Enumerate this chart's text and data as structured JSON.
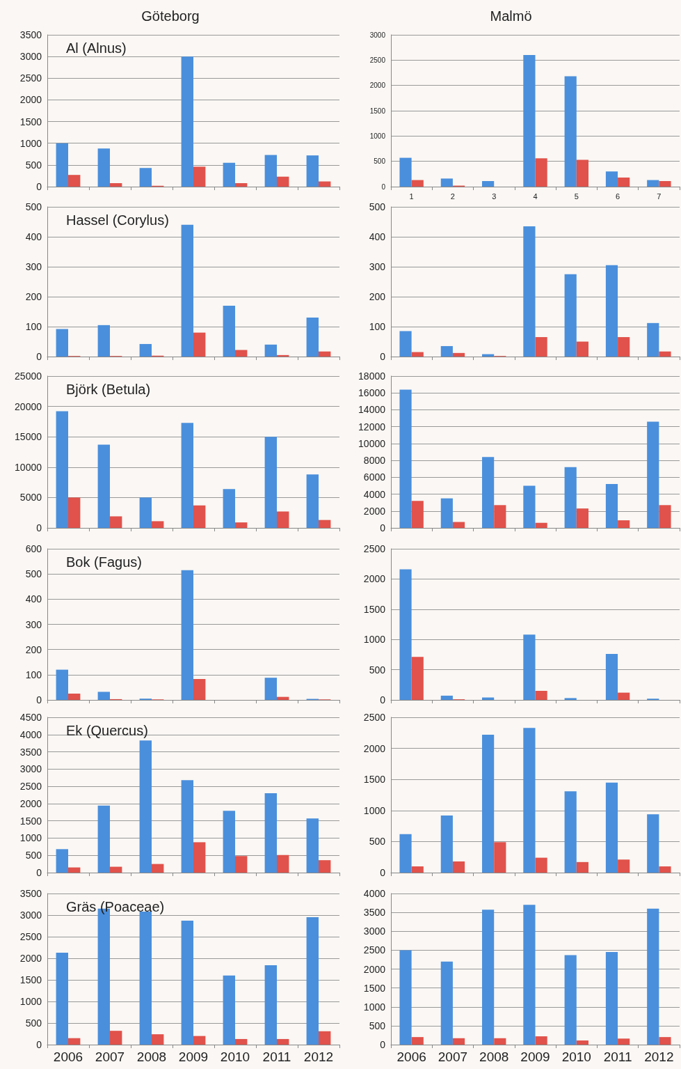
{
  "chart_data": [
    {
      "type": "bar",
      "title": "Göteborg",
      "subtitle": "Al (Alnus)",
      "categories": [
        null,
        null,
        null,
        null,
        null,
        null,
        null
      ],
      "tick_labels": "y",
      "grid": "y",
      "ylim": [
        0,
        3500
      ],
      "yticks": [
        0,
        500,
        1000,
        1500,
        2000,
        2500,
        3000,
        3500
      ],
      "series": [
        {
          "color": "#4a8fdc",
          "values": [
            1000,
            880,
            430,
            3000,
            550,
            730,
            720
          ]
        },
        {
          "color": "#e0524b",
          "values": [
            270,
            80,
            20,
            460,
            80,
            230,
            120
          ]
        }
      ]
    },
    {
      "type": "bar",
      "title": "Malmö",
      "categories": [
        "1",
        "2",
        "3",
        "4",
        "5",
        "6",
        "7"
      ],
      "grid": "y",
      "ylim": [
        0,
        3000
      ],
      "yticks": [
        0,
        500,
        1000,
        1500,
        2000,
        2500,
        3000
      ],
      "series": [
        {
          "color": "#4a8fdc",
          "values": [
            570,
            160,
            110,
            2600,
            2180,
            300,
            130
          ]
        },
        {
          "color": "#e0524b",
          "values": [
            130,
            20,
            null,
            560,
            530,
            180,
            110
          ]
        }
      ]
    },
    {
      "type": "bar",
      "subtitle": "Hassel (Corylus)",
      "categories": [
        null,
        null,
        null,
        null,
        null,
        null,
        null
      ],
      "tick_labels": "y",
      "grid": "y",
      "ylim": [
        0,
        500
      ],
      "yticks": [
        0,
        100,
        200,
        300,
        400,
        500
      ],
      "series": [
        {
          "color": "#4a8fdc",
          "values": [
            92,
            105,
            42,
            440,
            170,
            40,
            130
          ]
        },
        {
          "color": "#e0524b",
          "values": [
            2,
            2,
            3,
            80,
            22,
            5,
            17
          ]
        }
      ]
    },
    {
      "type": "bar",
      "categories": [
        null,
        null,
        null,
        null,
        null,
        null,
        null
      ],
      "tick_labels": "y",
      "grid": "y",
      "ylim": [
        0,
        500
      ],
      "yticks": [
        0,
        100,
        200,
        300,
        400,
        500
      ],
      "series": [
        {
          "color": "#4a8fdc",
          "values": [
            85,
            35,
            8,
            435,
            275,
            305,
            112
          ]
        },
        {
          "color": "#e0524b",
          "values": [
            15,
            12,
            2,
            65,
            50,
            65,
            17
          ]
        }
      ]
    },
    {
      "type": "bar",
      "subtitle": "Björk (Betula)",
      "categories": [
        null,
        null,
        null,
        null,
        null,
        null,
        null
      ],
      "tick_labels": "y",
      "grid": "y",
      "ylim": [
        0,
        25000
      ],
      "yticks": [
        0,
        5000,
        10000,
        15000,
        20000,
        25000
      ],
      "series": [
        {
          "color": "#4a8fdc",
          "values": [
            19200,
            13700,
            5000,
            17300,
            6400,
            15000,
            8800
          ]
        },
        {
          "color": "#e0524b",
          "values": [
            5000,
            1900,
            1100,
            3700,
            900,
            2700,
            1300
          ]
        }
      ]
    },
    {
      "type": "bar",
      "categories": [
        null,
        null,
        null,
        null,
        null,
        null,
        null
      ],
      "tick_labels": "y",
      "grid": "y",
      "ylim": [
        0,
        18000
      ],
      "yticks": [
        0,
        2000,
        4000,
        6000,
        8000,
        10000,
        12000,
        14000,
        16000,
        18000
      ],
      "series": [
        {
          "color": "#4a8fdc",
          "values": [
            16400,
            3500,
            8400,
            5000,
            7200,
            5200,
            12600
          ]
        },
        {
          "color": "#e0524b",
          "values": [
            3200,
            700,
            2700,
            600,
            2300,
            900,
            2700
          ]
        }
      ]
    },
    {
      "type": "bar",
      "subtitle": "Bok (Fagus)",
      "categories": [
        null,
        null,
        null,
        null,
        null,
        null,
        null
      ],
      "tick_labels": "y",
      "grid": "y",
      "ylim": [
        0,
        600
      ],
      "yticks": [
        0,
        100,
        200,
        300,
        400,
        500,
        600
      ],
      "series": [
        {
          "color": "#4a8fdc",
          "values": [
            120,
            32,
            5,
            515,
            0,
            88,
            4
          ]
        },
        {
          "color": "#e0524b",
          "values": [
            25,
            3,
            2,
            83,
            0,
            12,
            2
          ]
        }
      ]
    },
    {
      "type": "bar",
      "categories": [
        null,
        null,
        null,
        null,
        null,
        null,
        null
      ],
      "tick_labels": "y",
      "grid": "y",
      "ylim": [
        0,
        2500
      ],
      "yticks": [
        0,
        500,
        1000,
        1500,
        2000,
        2500
      ],
      "series": [
        {
          "color": "#4a8fdc",
          "values": [
            2160,
            70,
            40,
            1080,
            30,
            760,
            20
          ]
        },
        {
          "color": "#e0524b",
          "values": [
            710,
            10,
            null,
            150,
            null,
            120,
            null
          ]
        }
      ]
    },
    {
      "type": "bar",
      "subtitle": "Ek (Quercus)",
      "categories": [
        null,
        null,
        null,
        null,
        null,
        null,
        null
      ],
      "tick_labels": "y",
      "grid": "y",
      "ylim": [
        0,
        4500
      ],
      "yticks": [
        0,
        500,
        1000,
        1500,
        2000,
        2500,
        3000,
        3500,
        4000,
        4500
      ],
      "series": [
        {
          "color": "#4a8fdc",
          "values": [
            680,
            1940,
            3830,
            2680,
            1790,
            2300,
            1570
          ]
        },
        {
          "color": "#e0524b",
          "values": [
            150,
            170,
            250,
            880,
            480,
            510,
            360
          ]
        }
      ]
    },
    {
      "type": "bar",
      "categories": [
        null,
        null,
        null,
        null,
        null,
        null,
        null
      ],
      "tick_labels": "y",
      "grid": "y",
      "ylim": [
        0,
        2500
      ],
      "yticks": [
        0,
        500,
        1000,
        1500,
        2000,
        2500
      ],
      "series": [
        {
          "color": "#4a8fdc",
          "values": [
            620,
            920,
            2220,
            2330,
            1310,
            1450,
            940
          ]
        },
        {
          "color": "#e0524b",
          "values": [
            100,
            180,
            490,
            240,
            170,
            210,
            100
          ]
        }
      ]
    },
    {
      "type": "bar",
      "subtitle": "Gräs (Poaceae)",
      "categories": [
        "2006",
        "2007",
        "2008",
        "2009",
        "2010",
        "2011",
        "2012"
      ],
      "grid": "y",
      "ylim": [
        0,
        3500
      ],
      "yticks": [
        0,
        500,
        1000,
        1500,
        2000,
        2500,
        3000,
        3500
      ],
      "series": [
        {
          "color": "#4a8fdc",
          "values": [
            2130,
            3150,
            3080,
            2870,
            1600,
            1840,
            2950
          ]
        },
        {
          "color": "#e0524b",
          "values": [
            150,
            320,
            240,
            200,
            130,
            130,
            310
          ]
        }
      ]
    },
    {
      "type": "bar",
      "categories": [
        "2006",
        "2007",
        "2008",
        "2009",
        "2010",
        "2011",
        "2012"
      ],
      "grid": "y",
      "ylim": [
        0,
        4000
      ],
      "yticks": [
        0,
        500,
        1000,
        1500,
        2000,
        2500,
        3000,
        3500,
        4000
      ],
      "series": [
        {
          "color": "#4a8fdc",
          "values": [
            2500,
            2200,
            3570,
            3700,
            2370,
            2450,
            3600
          ]
        },
        {
          "color": "#e0524b",
          "values": [
            200,
            170,
            170,
            220,
            110,
            160,
            200
          ]
        }
      ]
    }
  ]
}
